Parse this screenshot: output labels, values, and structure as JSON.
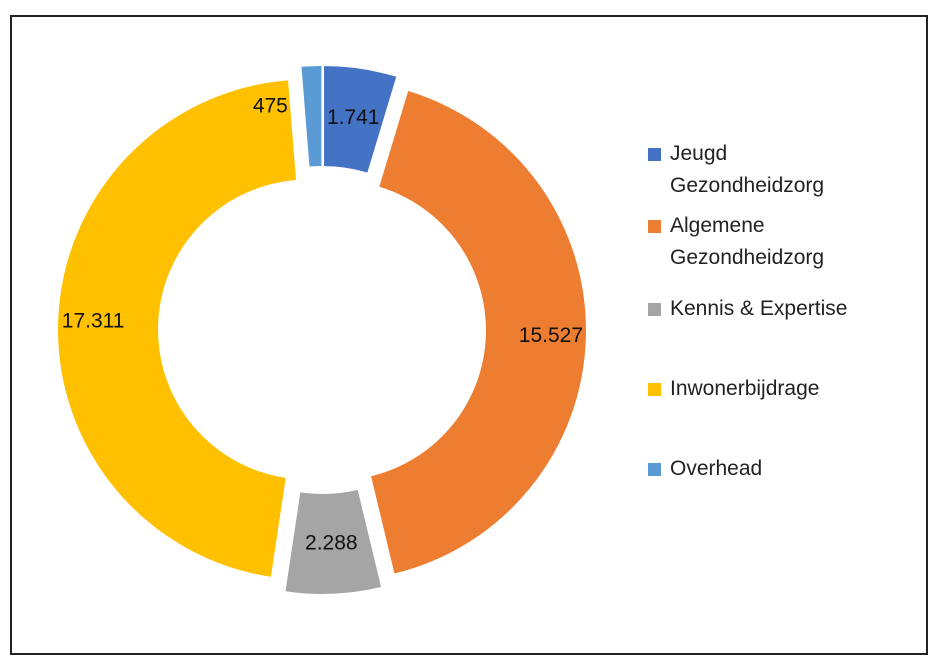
{
  "chart_data": {
    "type": "donut",
    "categories": [
      "Jeugd Gezondheidzorg",
      "Algemene Gezondheidzorg",
      "Kennis & Expertise",
      "Inwonerbijdrage",
      "Overhead"
    ],
    "values": [
      1741,
      15527,
      2288,
      17311,
      475
    ],
    "value_labels": [
      "1.741",
      "15.527",
      "2.288",
      "17.311",
      "475"
    ],
    "colors": [
      "#4472c4",
      "#ed7d31",
      "#a5a5a5",
      "#ffc000",
      "#5b9bd5"
    ],
    "legend": "right"
  }
}
